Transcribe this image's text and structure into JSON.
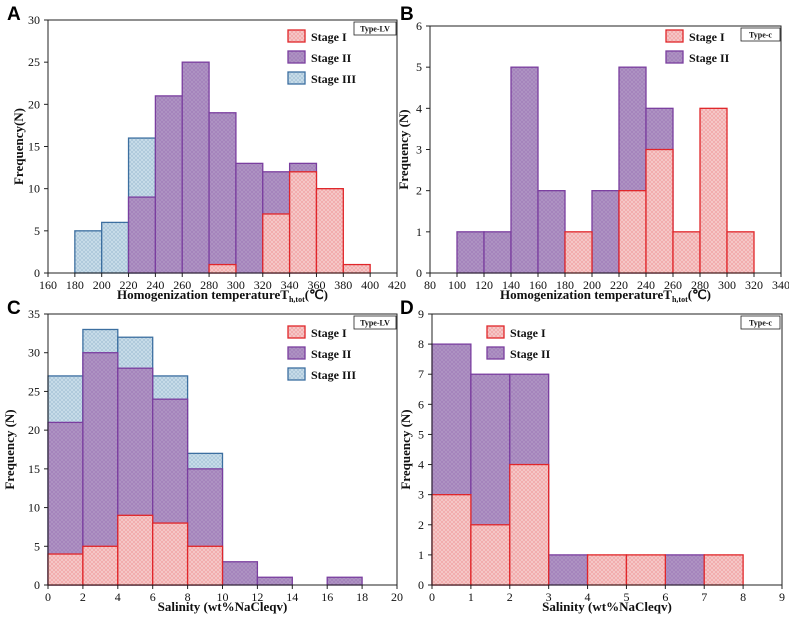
{
  "colors": {
    "stage1_fill": "#f5c6c6",
    "stage1_stroke": "#e0262a",
    "stage2_fill": "#ad92c2",
    "stage2_stroke": "#7a3e9f",
    "stage3_fill": "#c6dbe8",
    "stage3_stroke": "#3c6fa0"
  },
  "chart_data": [
    {
      "panel": "A",
      "type": "bar",
      "stacking": "overlaid",
      "type_label": "Type-LV",
      "xlabel": "Homogenization temperatureT",
      "xlabel_sub": "h,tot",
      "xlabel_tail": "(℃)",
      "ylabel": "Frequency(N)",
      "xlim": [
        160,
        420
      ],
      "ylim": [
        0,
        30
      ],
      "xticks": [
        160,
        180,
        200,
        220,
        240,
        260,
        280,
        300,
        320,
        340,
        360,
        380,
        400,
        420
      ],
      "yticks": [
        0,
        5,
        10,
        15,
        20,
        25,
        30
      ],
      "legend": [
        "Stage I",
        "Stage II",
        "Stage III"
      ],
      "bars": [
        {
          "stage": "Stage III",
          "x0": 180,
          "x1": 200,
          "value": 5
        },
        {
          "stage": "Stage III",
          "x0": 200,
          "x1": 220,
          "value": 6
        },
        {
          "stage": "Stage III",
          "x0": 220,
          "x1": 240,
          "value": 16
        },
        {
          "stage": "Stage II",
          "x0": 220,
          "x1": 240,
          "value": 9
        },
        {
          "stage": "Stage II",
          "x0": 240,
          "x1": 260,
          "value": 21
        },
        {
          "stage": "Stage II",
          "x0": 260,
          "x1": 280,
          "value": 25
        },
        {
          "stage": "Stage II",
          "x0": 280,
          "x1": 300,
          "value": 19
        },
        {
          "stage": "Stage II",
          "x0": 300,
          "x1": 320,
          "value": 13
        },
        {
          "stage": "Stage II",
          "x0": 320,
          "x1": 340,
          "value": 12
        },
        {
          "stage": "Stage II",
          "x0": 340,
          "x1": 360,
          "value": 13
        },
        {
          "stage": "Stage I",
          "x0": 280,
          "x1": 300,
          "value": 1
        },
        {
          "stage": "Stage I",
          "x0": 320,
          "x1": 340,
          "value": 7
        },
        {
          "stage": "Stage I",
          "x0": 340,
          "x1": 360,
          "value": 12
        },
        {
          "stage": "Stage I",
          "x0": 360,
          "x1": 380,
          "value": 10
        },
        {
          "stage": "Stage I",
          "x0": 380,
          "x1": 400,
          "value": 1
        }
      ]
    },
    {
      "panel": "B",
      "type": "bar",
      "stacking": "overlaid",
      "type_label": "Type-c",
      "xlabel": "Homogenization temperatureT",
      "xlabel_sub": "h,tot",
      "xlabel_tail": "(℃)",
      "ylabel": "Frequency (N)",
      "xlim": [
        80,
        340
      ],
      "ylim": [
        0,
        6
      ],
      "xticks": [
        80,
        100,
        120,
        140,
        160,
        180,
        200,
        220,
        240,
        260,
        280,
        300,
        320,
        340
      ],
      "yticks": [
        0,
        1,
        2,
        3,
        4,
        5,
        6
      ],
      "legend": [
        "Stage I",
        "Stage II"
      ],
      "bars": [
        {
          "stage": "Stage II",
          "x0": 100,
          "x1": 120,
          "value": 1
        },
        {
          "stage": "Stage II",
          "x0": 120,
          "x1": 140,
          "value": 1
        },
        {
          "stage": "Stage II",
          "x0": 140,
          "x1": 160,
          "value": 5
        },
        {
          "stage": "Stage II",
          "x0": 160,
          "x1": 180,
          "value": 2
        },
        {
          "stage": "Stage II",
          "x0": 200,
          "x1": 220,
          "value": 2
        },
        {
          "stage": "Stage II",
          "x0": 220,
          "x1": 240,
          "value": 5
        },
        {
          "stage": "Stage II",
          "x0": 240,
          "x1": 260,
          "value": 4
        },
        {
          "stage": "Stage I",
          "x0": 180,
          "x1": 200,
          "value": 1
        },
        {
          "stage": "Stage I",
          "x0": 220,
          "x1": 240,
          "value": 2
        },
        {
          "stage": "Stage I",
          "x0": 240,
          "x1": 260,
          "value": 3
        },
        {
          "stage": "Stage I",
          "x0": 260,
          "x1": 280,
          "value": 1
        },
        {
          "stage": "Stage I",
          "x0": 280,
          "x1": 300,
          "value": 4
        },
        {
          "stage": "Stage I",
          "x0": 300,
          "x1": 320,
          "value": 1
        }
      ]
    },
    {
      "panel": "C",
      "type": "bar",
      "stacking": "overlaid",
      "type_label": "Type-LV",
      "xlabel": "Salinity  (wt%NaCleqv)",
      "ylabel": "Frequency (N)",
      "xlim": [
        0,
        20
      ],
      "ylim": [
        0,
        35
      ],
      "xticks": [
        0,
        2,
        4,
        6,
        8,
        10,
        12,
        14,
        16,
        18,
        20
      ],
      "yticks": [
        0,
        5,
        10,
        15,
        20,
        25,
        30,
        35
      ],
      "legend": [
        "Stage I",
        "Stage II",
        "Stage III"
      ],
      "bars": [
        {
          "stage": "Stage III",
          "x0": 0,
          "x1": 2,
          "value": 27
        },
        {
          "stage": "Stage III",
          "x0": 2,
          "x1": 4,
          "value": 33
        },
        {
          "stage": "Stage III",
          "x0": 4,
          "x1": 6,
          "value": 32
        },
        {
          "stage": "Stage III",
          "x0": 6,
          "x1": 8,
          "value": 27
        },
        {
          "stage": "Stage III",
          "x0": 8,
          "x1": 10,
          "value": 17
        },
        {
          "stage": "Stage II",
          "x0": 0,
          "x1": 2,
          "value": 21
        },
        {
          "stage": "Stage II",
          "x0": 2,
          "x1": 4,
          "value": 30
        },
        {
          "stage": "Stage II",
          "x0": 4,
          "x1": 6,
          "value": 28
        },
        {
          "stage": "Stage II",
          "x0": 6,
          "x1": 8,
          "value": 24
        },
        {
          "stage": "Stage II",
          "x0": 8,
          "x1": 10,
          "value": 15
        },
        {
          "stage": "Stage II",
          "x0": 10,
          "x1": 12,
          "value": 3
        },
        {
          "stage": "Stage II",
          "x0": 12,
          "x1": 14,
          "value": 1
        },
        {
          "stage": "Stage II",
          "x0": 16,
          "x1": 18,
          "value": 1
        },
        {
          "stage": "Stage I",
          "x0": 0,
          "x1": 2,
          "value": 4
        },
        {
          "stage": "Stage I",
          "x0": 2,
          "x1": 4,
          "value": 5
        },
        {
          "stage": "Stage I",
          "x0": 4,
          "x1": 6,
          "value": 9
        },
        {
          "stage": "Stage I",
          "x0": 6,
          "x1": 8,
          "value": 8
        },
        {
          "stage": "Stage I",
          "x0": 8,
          "x1": 10,
          "value": 5
        }
      ]
    },
    {
      "panel": "D",
      "type": "bar",
      "stacking": "overlaid",
      "type_label": "Type-c",
      "xlabel": "Salinity  (wt%NaCleqv)",
      "ylabel": "Frequency (N)",
      "xlim": [
        0,
        9
      ],
      "ylim": [
        0,
        9
      ],
      "xticks": [
        0,
        1,
        2,
        3,
        4,
        5,
        6,
        7,
        8,
        9
      ],
      "yticks": [
        0,
        1,
        2,
        3,
        4,
        5,
        6,
        7,
        8,
        9
      ],
      "legend": [
        "Stage I",
        "Stage II"
      ],
      "bars": [
        {
          "stage": "Stage II",
          "x0": 0,
          "x1": 1,
          "value": 8
        },
        {
          "stage": "Stage II",
          "x0": 1,
          "x1": 2,
          "value": 7
        },
        {
          "stage": "Stage II",
          "x0": 2,
          "x1": 3,
          "value": 7
        },
        {
          "stage": "Stage II",
          "x0": 3,
          "x1": 4,
          "value": 1
        },
        {
          "stage": "Stage II",
          "x0": 6,
          "x1": 7,
          "value": 1
        },
        {
          "stage": "Stage I",
          "x0": 0,
          "x1": 1,
          "value": 3
        },
        {
          "stage": "Stage I",
          "x0": 1,
          "x1": 2,
          "value": 2
        },
        {
          "stage": "Stage I",
          "x0": 2,
          "x1": 3,
          "value": 4
        },
        {
          "stage": "Stage I",
          "x0": 4,
          "x1": 5,
          "value": 1
        },
        {
          "stage": "Stage I",
          "x0": 5,
          "x1": 6,
          "value": 1
        },
        {
          "stage": "Stage I",
          "x0": 7,
          "x1": 8,
          "value": 1
        }
      ]
    }
  ]
}
